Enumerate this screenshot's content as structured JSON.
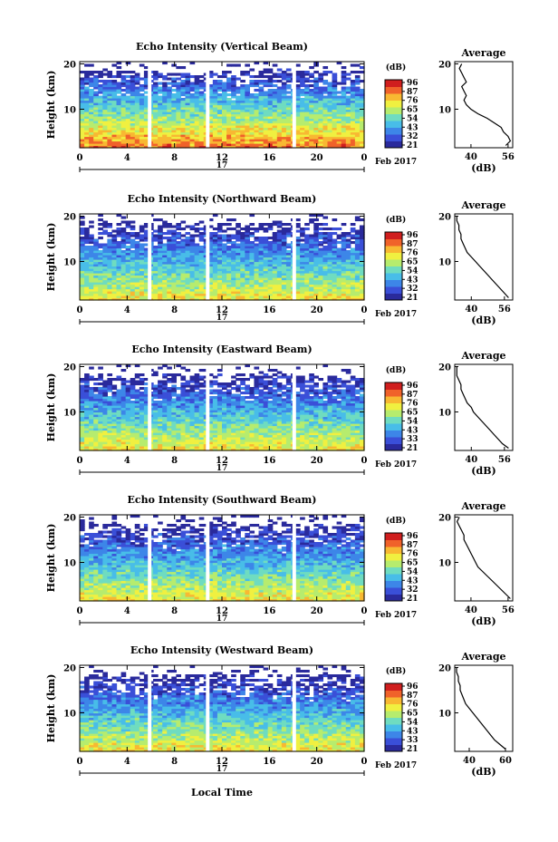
{
  "figure": {
    "xlabel": "Local Time",
    "date_label": "Feb 2017",
    "day_label": "17",
    "avg_title": "Average",
    "avg_xlabel": "(dB)",
    "colorbar_unit": "(dB)",
    "ylabel": "Height (km)"
  },
  "colors": {
    "scale": [
      "#2a2a9c",
      "#3a4fd8",
      "#3d86e8",
      "#48bde8",
      "#6fdcc0",
      "#b6ec6e",
      "#f0f040",
      "#f8b832",
      "#f0622a",
      "#d01e1e"
    ],
    "no_data": "#ffffff"
  },
  "chart_data": [
    {
      "type": "heatmap",
      "title": "Echo Intensity (Vertical Beam)",
      "x_ticks": [
        "0",
        "4",
        "8",
        "12",
        "16",
        "20",
        "0"
      ],
      "y_ticks": [
        "10",
        "20"
      ],
      "xlim": [
        0,
        24
      ],
      "ylim": [
        1.5,
        20.5
      ],
      "colorbar_ticks": [
        "96",
        "87",
        "76",
        "65",
        "54",
        "43",
        "32",
        "21"
      ],
      "data_gaps_hours": [
        5.9,
        10.8,
        18.1
      ],
      "average_profile": {
        "xlim": [
          33,
          58
        ],
        "x_ticks": [
          "40",
          "56"
        ],
        "heights": [
          2,
          3,
          4,
          5,
          6,
          7,
          8,
          9,
          10,
          11,
          12,
          13,
          14,
          15,
          16,
          17,
          18,
          19,
          20
        ],
        "values": [
          55,
          57,
          56,
          54,
          53,
          50,
          47,
          43,
          40,
          38,
          37,
          38,
          37,
          36,
          38,
          37,
          36,
          35,
          36
        ]
      }
    },
    {
      "type": "heatmap",
      "title": "Echo Intensity (Northward Beam)",
      "x_ticks": [
        "0",
        "4",
        "8",
        "12",
        "16",
        "20",
        "0"
      ],
      "y_ticks": [
        "10",
        "20"
      ],
      "xlim": [
        0,
        24
      ],
      "ylim": [
        1.5,
        20.5
      ],
      "colorbar_ticks": [
        "96",
        "87",
        "76",
        "65",
        "54",
        "43",
        "32",
        "21"
      ],
      "data_gaps_hours": [
        5.9,
        10.8,
        18.1
      ],
      "average_profile": {
        "xlim": [
          32,
          60
        ],
        "x_ticks": [
          "40",
          "56"
        ],
        "heights": [
          2,
          3,
          4,
          5,
          6,
          7,
          8,
          9,
          10,
          11,
          12,
          13,
          14,
          15,
          16,
          17,
          18,
          19,
          20
        ],
        "values": [
          58,
          56,
          54,
          52,
          50,
          48,
          46,
          44,
          42,
          40,
          38,
          37,
          36,
          35,
          35,
          34,
          34,
          33,
          33
        ]
      }
    },
    {
      "type": "heatmap",
      "title": "Echo Intensity (Eastward Beam)",
      "x_ticks": [
        "0",
        "4",
        "8",
        "12",
        "16",
        "20",
        "0"
      ],
      "y_ticks": [
        "10",
        "20"
      ],
      "xlim": [
        0,
        24
      ],
      "ylim": [
        1.5,
        20.5
      ],
      "colorbar_ticks": [
        "96",
        "87",
        "76",
        "65",
        "54",
        "43",
        "33",
        "21"
      ],
      "data_gaps_hours": [
        5.9,
        10.8,
        18.1
      ],
      "average_profile": {
        "xlim": [
          32,
          60
        ],
        "x_ticks": [
          "40",
          "56"
        ],
        "heights": [
          2,
          3,
          4,
          5,
          6,
          7,
          8,
          9,
          10,
          11,
          12,
          13,
          14,
          15,
          16,
          17,
          18,
          19,
          20
        ],
        "values": [
          58,
          55,
          53,
          51,
          49,
          47,
          45,
          43,
          41,
          40,
          38,
          37,
          36,
          35,
          35,
          34,
          33,
          33,
          33
        ]
      }
    },
    {
      "type": "heatmap",
      "title": "Echo Intensity (Southward Beam)",
      "x_ticks": [
        "0",
        "4",
        "8",
        "12",
        "16",
        "20",
        "0"
      ],
      "y_ticks": [
        "10",
        "20"
      ],
      "xlim": [
        0,
        24
      ],
      "ylim": [
        1.5,
        20.5
      ],
      "colorbar_ticks": [
        "96",
        "87",
        "76",
        "65",
        "54",
        "43",
        "32",
        "21"
      ],
      "data_gaps_hours": [
        5.9,
        10.8,
        18.1
      ],
      "average_profile": {
        "xlim": [
          33,
          58
        ],
        "x_ticks": [
          "40",
          "56"
        ],
        "heights": [
          2,
          3,
          4,
          5,
          6,
          7,
          8,
          9,
          10,
          11,
          12,
          13,
          14,
          15,
          16,
          17,
          18,
          19,
          20
        ],
        "values": [
          57,
          55,
          53,
          51,
          49,
          47,
          45,
          43,
          42,
          41,
          40,
          39,
          38,
          37,
          37,
          36,
          35,
          34,
          35
        ]
      }
    },
    {
      "type": "heatmap",
      "title": "Echo Intensity (Westward Beam)",
      "x_ticks": [
        "0",
        "4",
        "8",
        "12",
        "16",
        "20",
        "0"
      ],
      "y_ticks": [
        "10",
        "20"
      ],
      "xlim": [
        0,
        24
      ],
      "ylim": [
        1.5,
        20.5
      ],
      "colorbar_ticks": [
        "96",
        "87",
        "76",
        "65",
        "54",
        "43",
        "33",
        "21"
      ],
      "data_gaps_hours": [
        5.9,
        10.8,
        18.1
      ],
      "average_profile": {
        "xlim": [
          32,
          64
        ],
        "x_ticks": [
          "40",
          "60"
        ],
        "heights": [
          2,
          3,
          4,
          5,
          6,
          7,
          8,
          9,
          10,
          11,
          12,
          13,
          14,
          15,
          16,
          17,
          18,
          19,
          20
        ],
        "values": [
          60,
          57,
          54,
          52,
          50,
          48,
          46,
          44,
          42,
          40,
          38,
          37,
          36,
          35,
          35,
          34,
          34,
          33,
          33
        ]
      }
    }
  ]
}
